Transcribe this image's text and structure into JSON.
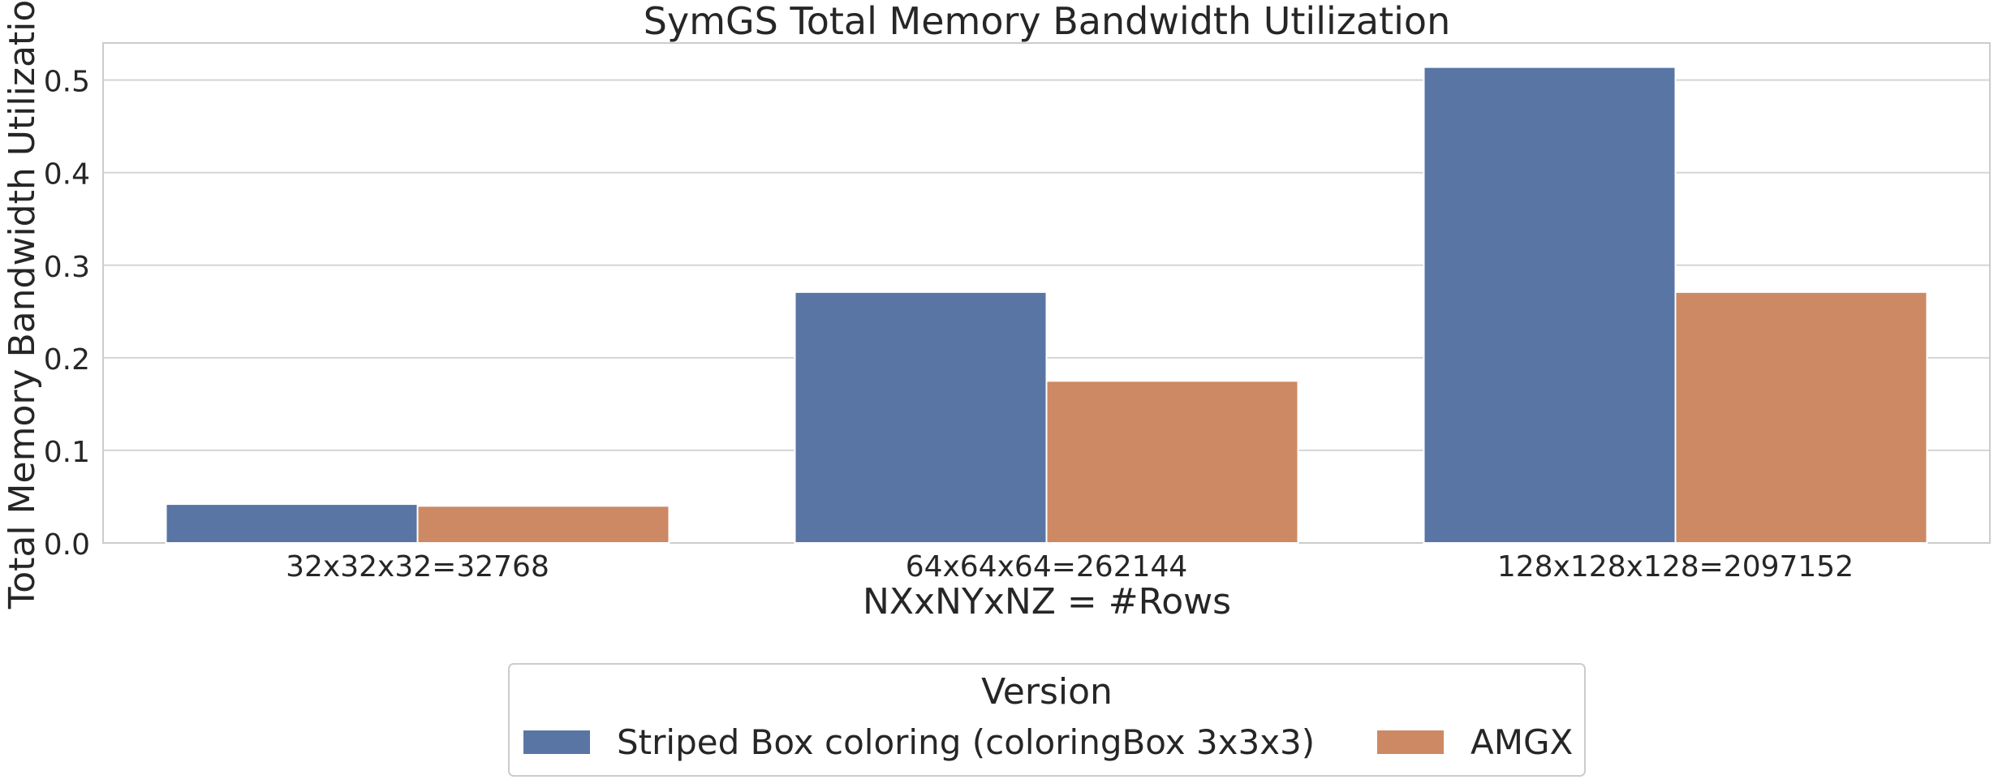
{
  "chart_data": {
    "type": "bar",
    "title": "SymGS Total Memory Bandwidth Utilization",
    "xlabel": "NXxNYxNZ = #Rows",
    "ylabel": "Total Memory Bandwidth Utilization",
    "categories": [
      "32x32x32=32768",
      "64x64x64=262144",
      "128x128x128=2097152"
    ],
    "ylim": [
      0,
      0.54
    ],
    "yticks": [
      0.0,
      0.1,
      0.2,
      0.3,
      0.4,
      0.5
    ],
    "ytick_labels": [
      "0.0",
      "0.1",
      "0.2",
      "0.3",
      "0.4",
      "0.5"
    ],
    "grid": true,
    "legend": {
      "title": "Version",
      "placement": "bottom-center"
    },
    "series": [
      {
        "name": "Striped Box coloring (coloringBox 3x3x3)",
        "color": "#5975a4",
        "values": [
          0.042,
          0.271,
          0.514
        ]
      },
      {
        "name": "AMGX",
        "color": "#cc8963",
        "values": [
          0.04,
          0.175,
          0.271
        ]
      }
    ]
  }
}
